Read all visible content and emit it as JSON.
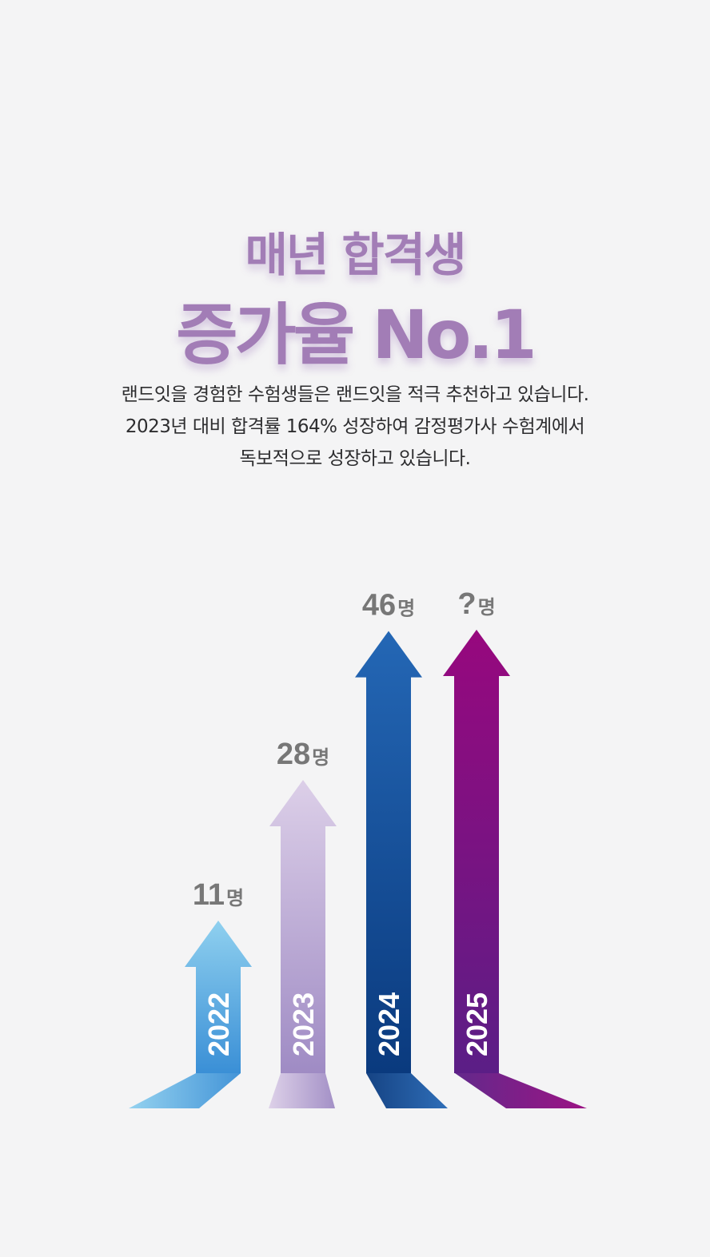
{
  "headline": {
    "line1": "매년 합격생",
    "line2": "증가율 No.1"
  },
  "description": [
    "랜드잇을 경험한 수험생들은 랜드잇을 적극 추천하고 있습니다.",
    "2023년 대비 합격률 164% 성장하여 감정평가사 수험계에서",
    "독보적으로 성장하고 있습니다."
  ],
  "chart_data": {
    "type": "bar",
    "categories": [
      "2022",
      "2023",
      "2024",
      "2025"
    ],
    "values": [
      11,
      28,
      46,
      null
    ],
    "value_labels": [
      "11",
      "28",
      "46",
      "?"
    ],
    "unit": "명",
    "colors": [
      [
        "#8fd0ef",
        "#3a8fd6"
      ],
      [
        "#dccfe8",
        "#9f8bc4"
      ],
      [
        "#2467b5",
        "#0a3a7e"
      ],
      [
        "#97087e",
        "#5b1e86"
      ]
    ]
  }
}
